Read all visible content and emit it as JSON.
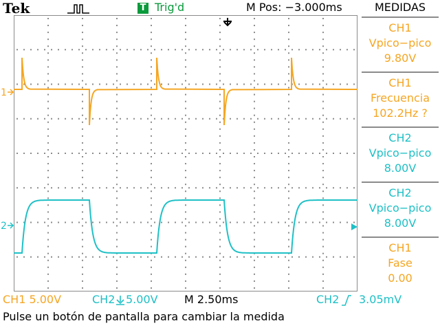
{
  "header": {
    "brand": "Tek",
    "acquisition_icon": "run-acquisition-icon",
    "trigger_badge": "T",
    "trigger_status": "Trig'd",
    "horizontal_position": "M Pos: −3.000ms",
    "menu_title": "MEDIDAS"
  },
  "colors": {
    "ch1": "#f5a623",
    "ch2": "#1ec0c6",
    "trigger": "#0b9a3c",
    "grid": "#8a8a8a"
  },
  "channels": {
    "ch1_marker": "1",
    "ch2_marker": "2"
  },
  "measurements": [
    {
      "source": "CH1",
      "name": "Vpico−pico",
      "value": "9.80V",
      "color": "#f5a623"
    },
    {
      "source": "CH1",
      "name": "Frecuencia",
      "value": "102.2Hz ?",
      "color": "#f5a623"
    },
    {
      "source": "CH2",
      "name": "Vpico−pico",
      "value": "8.00V",
      "color": "#1ec0c6"
    },
    {
      "source": "CH2",
      "name": "Vpico−pico",
      "value": "8.00V",
      "color": "#1ec0c6"
    },
    {
      "source": "CH1",
      "name": "Fase",
      "value": "0.00",
      "color": "#f5a623"
    }
  ],
  "status_bar": {
    "ch1_scale": "CH1  5.00V",
    "ch2_scale": "CH2",
    "ch2_volts": "5.00V",
    "timebase": "M 2.50ms",
    "trigger_source": "CH2",
    "trigger_level": "3.05mV"
  },
  "message": "Pulse un botón de pantalla para cambiar la medida"
}
